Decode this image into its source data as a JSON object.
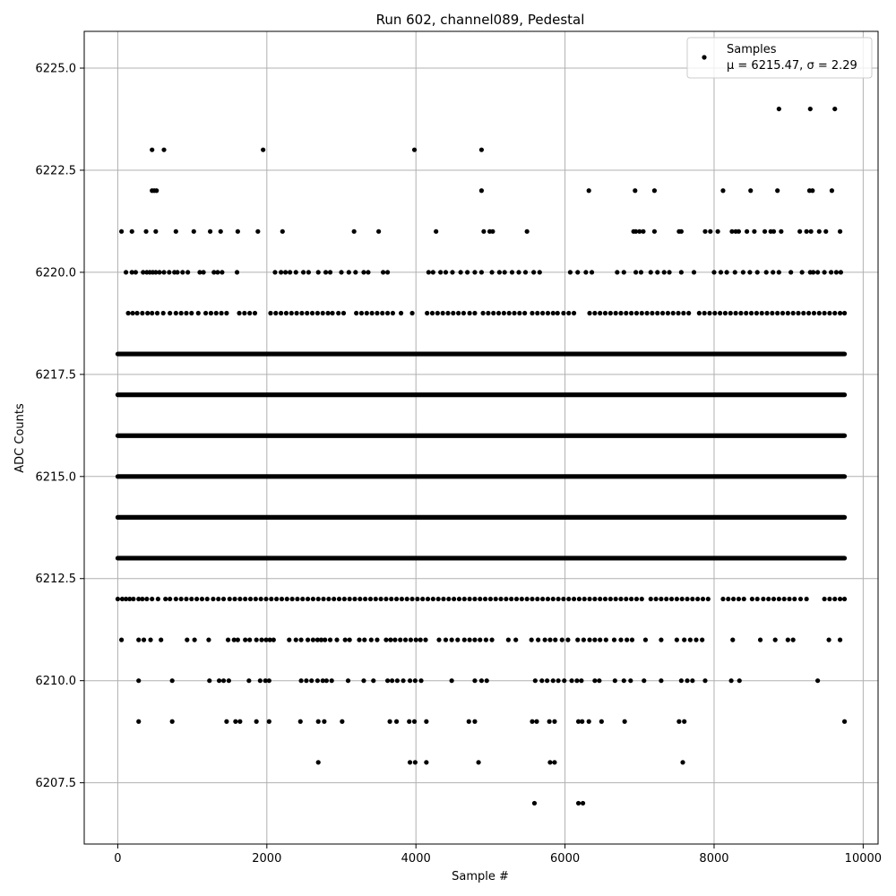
{
  "chart_data": {
    "type": "scatter",
    "title": "Run 602, channel089, Pedestal",
    "xlabel": "Sample #",
    "ylabel": "ADC Counts",
    "xlim": [
      -450,
      10200
    ],
    "ylim": [
      6206.0,
      6225.9
    ],
    "xticks": [
      0,
      2000,
      4000,
      6000,
      8000,
      10000
    ],
    "xtick_labels": [
      "0",
      "2000",
      "4000",
      "6000",
      "8000",
      "10000"
    ],
    "yticks": [
      6207.5,
      6210.0,
      6212.5,
      6215.0,
      6217.5,
      6220.0,
      6222.5,
      6225.0
    ],
    "ytick_labels": [
      "6207.5",
      "6210.0",
      "6212.5",
      "6215.0",
      "6217.5",
      "6220.0",
      "6222.5",
      "6225.0"
    ],
    "grid": true,
    "legend": {
      "placement": "top-right",
      "marker_label": "Samples",
      "stats_text": "μ = 6215.47, σ = 2.29"
    },
    "series": [
      {
        "name": "Samples",
        "color": "#000000",
        "bands": [
          {
            "y": 6213,
            "xs": [
              0,
              9750
            ]
          },
          {
            "y": 6214,
            "xs": [
              0,
              9750
            ]
          },
          {
            "y": 6215,
            "xs": [
              0,
              9750
            ]
          },
          {
            "y": 6216,
            "xs": [
              0,
              9750
            ]
          },
          {
            "y": 6217,
            "xs": [
              0,
              9750
            ]
          },
          {
            "y": 6218,
            "xs": [
              0,
              9750
            ]
          }
        ],
        "rows": [
          {
            "y": 6224,
            "x": [
              8870,
              9290,
              9620
            ]
          },
          {
            "y": 6223,
            "x": [
              460,
              620,
              1950,
              3980,
              4880
            ]
          },
          {
            "y": 6222,
            "x": [
              460,
              490,
              520,
              4880,
              6320,
              6940,
              7200,
              8120,
              8490,
              8850,
              9280,
              9320,
              9580
            ]
          },
          {
            "y": 6221,
            "x": [
              50,
              190,
              380,
              510,
              780,
              1020,
              1240,
              1380,
              1610,
              1880,
              2210,
              3170,
              3500,
              4270,
              4910,
              4990,
              5030,
              5490,
              6920,
              6950,
              7000,
              7050,
              7200,
              7530,
              7560,
              7880,
              7950,
              8050,
              8240,
              8290,
              8330,
              8440,
              8540,
              8680,
              8760,
              8800,
              8900,
              9150,
              9240,
              9300,
              9410,
              9500,
              9690
            ]
          },
          {
            "y": 6220,
            "x": [
              110,
              190,
              240,
              340,
              390,
              430,
              470,
              510,
              560,
              620,
              690,
              760,
              800,
              870,
              940,
              1100,
              1150,
              1290,
              1340,
              1400,
              1600,
              2110,
              2190,
              2250,
              2310,
              2390,
              2490,
              2560,
              2690,
              2790,
              2850,
              3000,
              3100,
              3190,
              3300,
              3360,
              3560,
              3620,
              4170,
              4230,
              4330,
              4400,
              4490,
              4600,
              4690,
              4790,
              4880,
              5020,
              5120,
              5190,
              5290,
              5380,
              5470,
              5580,
              5660,
              6070,
              6170,
              6280,
              6360,
              6700,
              6790,
              6950,
              7020,
              7150,
              7240,
              7330,
              7400,
              7560,
              7730,
              8000,
              8090,
              8170,
              8280,
              8390,
              8480,
              8580,
              8700,
              8790,
              8870,
              9030,
              9180,
              9290,
              9330,
              9390,
              9480,
              9570,
              9640,
              9700
            ]
          },
          {
            "y": 6219,
            "x": [
              140,
              200,
              260,
              330,
              400,
              460,
              530,
              610,
              700,
              780,
              850,
              920,
              990,
              1080,
              1180,
              1250,
              1320,
              1390,
              1460,
              1630,
              1700,
              1770,
              1840,
              2050,
              2120,
              2190,
              2260,
              2330,
              2400,
              2470,
              2540,
              2610,
              2680,
              2750,
              2820,
              2880,
              2960,
              3030,
              3200,
              3270,
              3340,
              3410,
              3480,
              3550,
              3620,
              3690,
              3800,
              3950,
              4150,
              4220,
              4290,
              4360,
              4430,
              4500,
              4570,
              4640,
              4720,
              4790,
              4900,
              4970,
              5040,
              5110,
              5180,
              5250,
              5320,
              5390,
              5460,
              5560,
              5630,
              5700,
              5770,
              5840,
              5900,
              5980,
              6050,
              6120,
              6330,
              6400,
              6470,
              6540,
              6610,
              6680,
              6750,
              6820,
              6890,
              6960,
              7030,
              7100,
              7170,
              7240,
              7310,
              7380,
              7450,
              7520,
              7590,
              7660,
              7800,
              7870,
              7940,
              8010,
              8080,
              8150,
              8220,
              8290,
              8360,
              8430,
              8500,
              8570,
              8640,
              8710,
              8780,
              8850,
              8920,
              8990,
              9060,
              9130,
              9200,
              9270,
              9340,
              9410,
              9480,
              9550,
              9620,
              9690,
              9750
            ]
          },
          {
            "y": 6212,
            "x": [
              0,
              60,
              110,
              160,
              210,
              280,
              330,
              390,
              460,
              540,
              640,
              700,
              780,
              850,
              920,
              990,
              1060,
              1130,
              1200,
              1280,
              1350,
              1420,
              1500,
              1570,
              1640,
              1710,
              1780,
              1850,
              1920,
              1990,
              2060,
              2130,
              2200,
              2270,
              2340,
              2410,
              2480,
              2550,
              2620,
              2690,
              2760,
              2830,
              2900,
              2970,
              3040,
              3110,
              3180,
              3250,
              3320,
              3390,
              3460,
              3530,
              3600,
              3670,
              3740,
              3810,
              3880,
              3950,
              4020,
              4090,
              4160,
              4230,
              4300,
              4370,
              4440,
              4510,
              4580,
              4650,
              4720,
              4790,
              4860,
              4930,
              5000,
              5070,
              5140,
              5210,
              5280,
              5350,
              5420,
              5490,
              5560,
              5630,
              5700,
              5770,
              5840,
              5910,
              5980,
              6050,
              6120,
              6190,
              6260,
              6330,
              6400,
              6470,
              6540,
              6610,
              6680,
              6750,
              6820,
              6890,
              6960,
              7030,
              7150,
              7220,
              7290,
              7360,
              7430,
              7500,
              7570,
              7640,
              7710,
              7780,
              7850,
              7920,
              8120,
              8190,
              8260,
              8330,
              8400,
              8510,
              8580,
              8660,
              8730,
              8800,
              8870,
              8940,
              9010,
              9080,
              9160,
              9240,
              9480,
              9550,
              9620,
              9690,
              9750
            ]
          },
          {
            "y": 6211,
            "x": [
              50,
              280,
              350,
              440,
              580,
              930,
              1030,
              1220,
              1480,
              1560,
              1610,
              1710,
              1770,
              1860,
              1930,
              1990,
              2040,
              2090,
              2300,
              2390,
              2460,
              2550,
              2620,
              2680,
              2730,
              2780,
              2850,
              2940,
              3050,
              3110,
              3240,
              3310,
              3400,
              3480,
              3600,
              3660,
              3720,
              3790,
              3860,
              3930,
              4000,
              4060,
              4130,
              4310,
              4400,
              4480,
              4560,
              4650,
              4720,
              4790,
              4860,
              4940,
              5020,
              5240,
              5340,
              5550,
              5640,
              5730,
              5800,
              5870,
              5960,
              6040,
              6170,
              6250,
              6330,
              6400,
              6470,
              6550,
              6660,
              6750,
              6830,
              6900,
              7080,
              7290,
              7500,
              7600,
              7680,
              7760,
              7840,
              8250,
              8620,
              8820,
              8990,
              9060,
              9540,
              9690
            ]
          },
          {
            "y": 6210,
            "x": [
              280,
              730,
              1230,
              1360,
              1420,
              1490,
              1760,
              1910,
              1980,
              2030,
              2460,
              2530,
              2600,
              2680,
              2750,
              2800,
              2870,
              3090,
              3300,
              3430,
              3620,
              3680,
              3750,
              3830,
              3920,
              3990,
              4070,
              4480,
              4790,
              4880,
              4950,
              5600,
              5690,
              5760,
              5840,
              5910,
              5990,
              6090,
              6160,
              6220,
              6400,
              6460,
              6670,
              6790,
              6880,
              7060,
              7290,
              7560,
              7640,
              7710,
              7880,
              8230,
              8340,
              9390
            ]
          },
          {
            "y": 6209,
            "x": [
              280,
              730,
              1460,
              1580,
              1640,
              1860,
              2030,
              2450,
              2690,
              2770,
              3010,
              3650,
              3740,
              3910,
              3980,
              4140,
              4710,
              4790,
              5560,
              5620,
              5790,
              5860,
              6180,
              6230,
              6320,
              6490,
              6800,
              7530,
              7600,
              9750
            ]
          },
          {
            "y": 6208,
            "x": [
              2690,
              3920,
              3990,
              4140,
              4840,
              5800,
              5860,
              7580
            ]
          },
          {
            "y": 6207,
            "x": [
              5590,
              6180,
              6240
            ]
          }
        ]
      }
    ]
  }
}
